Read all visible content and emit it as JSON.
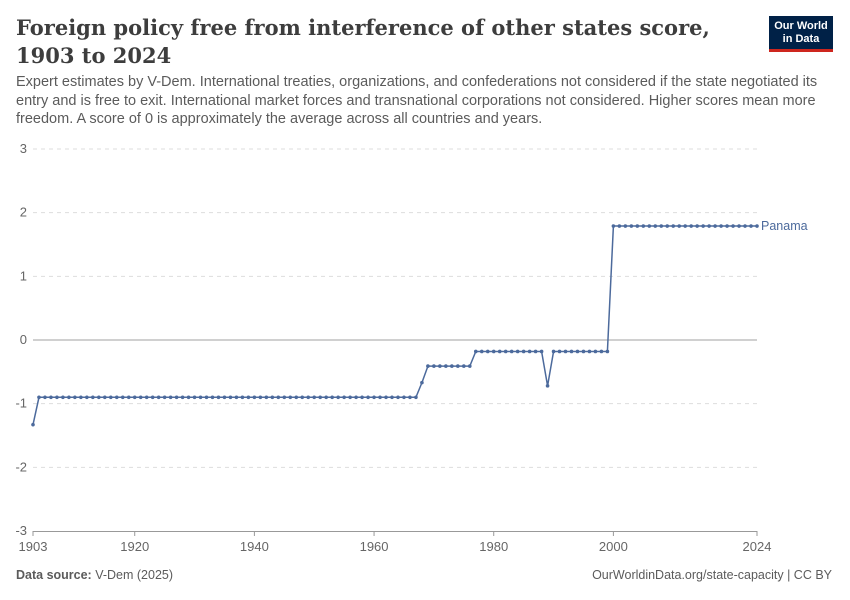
{
  "header": {
    "title": "Foreign policy free from interference of other states score, 1903 to 2024",
    "subtitle": "Expert estimates by V-Dem. International treaties, organizations, and confederations not considered if the state negotiated its entry and is free to exit. International market forces and transnational corporations not considered. Higher scores mean more freedom. A score of 0 is approximately the average across all countries and years.",
    "logo_line1": "Our World",
    "logo_line2": "in Data"
  },
  "footer": {
    "source_label": "Data source:",
    "source_value": "V-Dem (2025)",
    "url_license": "OurWorldinData.org/state-capacity | CC BY"
  },
  "colors": {
    "series": "#4c6a9c",
    "logo_bg": "#002147",
    "logo_accent": "#ce261e",
    "grid": "#dddddd",
    "zero_line": "#a1a1a1"
  },
  "chart_data": {
    "type": "line",
    "title": "Foreign policy free from interference of other states score, 1903 to 2024",
    "xlabel": "",
    "ylabel": "",
    "xlim": [
      1903,
      2024
    ],
    "ylim": [
      -3,
      3
    ],
    "x_ticks": [
      1903,
      1920,
      1940,
      1960,
      1980,
      2000,
      2024
    ],
    "y_ticks": [
      -3,
      -2,
      -1,
      0,
      1,
      2,
      3
    ],
    "grid": "horizontal dashed",
    "legend": "inline label at line end",
    "series": [
      {
        "name": "Panama",
        "color": "#4c6a9c",
        "segments": [
          {
            "from": 1903,
            "to": 1903,
            "value": -1.33
          },
          {
            "from": 1904,
            "to": 1967,
            "value": -0.9
          },
          {
            "from": 1968,
            "to": 1968,
            "value": -0.67
          },
          {
            "from": 1969,
            "to": 1976,
            "value": -0.41
          },
          {
            "from": 1977,
            "to": 1988,
            "value": -0.18
          },
          {
            "from": 1989,
            "to": 1989,
            "value": -0.72
          },
          {
            "from": 1990,
            "to": 1999,
            "value": -0.18
          },
          {
            "from": 2000,
            "to": 2024,
            "value": 1.79
          }
        ]
      }
    ]
  }
}
